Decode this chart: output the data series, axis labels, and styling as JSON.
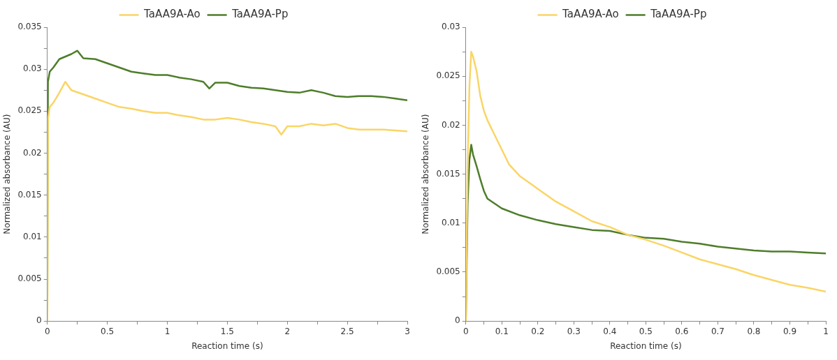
{
  "chart_data": [
    {
      "type": "line",
      "xlabel": "Reaction time (s)",
      "ylabel": "Normalized absorbance (AU)",
      "legend": "top",
      "grid": false,
      "marker": "none",
      "line_style": "solid",
      "xlim": [
        0,
        3
      ],
      "xticks": [
        0,
        {
          "value": 0.25,
          "label": null
        },
        0.5,
        {
          "value": 0.75,
          "label": null
        },
        1,
        {
          "value": 1.25,
          "label": null
        },
        1.5,
        {
          "value": 1.75,
          "label": null
        },
        2,
        {
          "value": 2.25,
          "label": null
        },
        2.5,
        {
          "value": 2.75,
          "label": null
        },
        3
      ],
      "ylim": [
        0,
        0.035
      ],
      "yticks": [
        0,
        {
          "value": 0.0025,
          "label": null
        },
        0.005,
        {
          "value": 0.0075,
          "label": null
        },
        0.01,
        {
          "value": 0.0125,
          "label": null
        },
        0.015,
        {
          "value": 0.0175,
          "label": null
        },
        0.02,
        {
          "value": 0.0225,
          "label": null
        },
        0.025,
        {
          "value": 0.0275,
          "label": null
        },
        0.03,
        {
          "value": 0.0325,
          "label": null
        },
        0.035
      ],
      "series": [
        {
          "name": "TaAA9A-Ao",
          "color": "#fad565",
          "x": [
            0,
            0.005,
            0.02,
            0.05,
            0.1,
            0.15,
            0.2,
            0.3,
            0.4,
            0.5,
            0.6,
            0.7,
            0.8,
            0.9,
            1.0,
            1.1,
            1.2,
            1.3,
            1.4,
            1.5,
            1.6,
            1.7,
            1.8,
            1.9,
            1.95,
            2.0,
            2.1,
            2.2,
            2.3,
            2.4,
            2.5,
            2.6,
            2.7,
            2.8,
            2.9,
            3.0
          ],
          "values": [
            0,
            0.024,
            0.0255,
            0.026,
            0.0272,
            0.0285,
            0.0275,
            0.027,
            0.0265,
            0.026,
            0.0255,
            0.0253,
            0.025,
            0.0248,
            0.0248,
            0.0245,
            0.0243,
            0.024,
            0.024,
            0.0242,
            0.024,
            0.0237,
            0.0235,
            0.0232,
            0.0222,
            0.0232,
            0.0232,
            0.0235,
            0.0233,
            0.0235,
            0.023,
            0.0228,
            0.0228,
            0.0228,
            0.0227,
            0.0226
          ]
        },
        {
          "name": "TaAA9A-Pp",
          "color": "#4e7d2a",
          "x": [
            0,
            0.005,
            0.02,
            0.05,
            0.1,
            0.2,
            0.25,
            0.3,
            0.4,
            0.5,
            0.6,
            0.7,
            0.8,
            0.9,
            1.0,
            1.1,
            1.2,
            1.3,
            1.35,
            1.4,
            1.5,
            1.6,
            1.7,
            1.8,
            1.9,
            2.0,
            2.1,
            2.2,
            2.3,
            2.4,
            2.5,
            2.6,
            2.7,
            2.8,
            2.9,
            3.0
          ],
          "values": [
            0,
            0.0285,
            0.0297,
            0.0302,
            0.0312,
            0.0318,
            0.0322,
            0.0313,
            0.0312,
            0.0307,
            0.0302,
            0.0297,
            0.0295,
            0.0293,
            0.0293,
            0.029,
            0.0288,
            0.0285,
            0.0277,
            0.0284,
            0.0284,
            0.028,
            0.0278,
            0.0277,
            0.0275,
            0.0273,
            0.0272,
            0.0275,
            0.0272,
            0.0268,
            0.0267,
            0.0268,
            0.0268,
            0.0267,
            0.0265,
            0.0263
          ]
        }
      ]
    },
    {
      "type": "line",
      "xlabel": "Reaction time (s)",
      "ylabel": "Normalized absorbance (AU)",
      "legend": "top",
      "grid": false,
      "marker": "none",
      "line_style": "solid",
      "xlim": [
        0,
        1
      ],
      "xticks": [
        0,
        {
          "value": 0.05,
          "label": null
        },
        0.1,
        {
          "value": 0.15,
          "label": null
        },
        0.2,
        {
          "value": 0.25,
          "label": null
        },
        0.3,
        {
          "value": 0.35,
          "label": null
        },
        0.4,
        {
          "value": 0.45,
          "label": null
        },
        0.5,
        {
          "value": 0.55,
          "label": null
        },
        0.6,
        {
          "value": 0.65,
          "label": null
        },
        0.7,
        {
          "value": 0.75,
          "label": null
        },
        0.8,
        {
          "value": 0.85,
          "label": null
        },
        0.9,
        {
          "value": 0.95,
          "label": null
        },
        1
      ],
      "ylim": [
        0,
        0.03
      ],
      "yticks": [
        0,
        {
          "value": 0.0025,
          "label": null
        },
        0.005,
        {
          "value": 0.0075,
          "label": null
        },
        0.01,
        {
          "value": 0.0125,
          "label": null
        },
        0.015,
        {
          "value": 0.0175,
          "label": null
        },
        0.02,
        {
          "value": 0.0225,
          "label": null
        },
        0.025,
        {
          "value": 0.0275,
          "label": null
        },
        0.03
      ],
      "series": [
        {
          "name": "TaAA9A-Ao",
          "color": "#fad565",
          "x": [
            0,
            0.005,
            0.01,
            0.015,
            0.02,
            0.03,
            0.04,
            0.05,
            0.06,
            0.08,
            0.1,
            0.12,
            0.15,
            0.2,
            0.25,
            0.3,
            0.35,
            0.4,
            0.45,
            0.5,
            0.55,
            0.6,
            0.65,
            0.7,
            0.75,
            0.8,
            0.85,
            0.9,
            0.95,
            1.0
          ],
          "values": [
            0,
            0.016,
            0.024,
            0.0275,
            0.027,
            0.0255,
            0.023,
            0.0215,
            0.0205,
            0.019,
            0.0175,
            0.016,
            0.0148,
            0.0135,
            0.0122,
            0.0112,
            0.0102,
            0.0096,
            0.0088,
            0.0083,
            0.0077,
            0.007,
            0.0063,
            0.0058,
            0.0053,
            0.0047,
            0.0042,
            0.0037,
            0.0034,
            0.003
          ]
        },
        {
          "name": "TaAA9A-Pp",
          "color": "#4e7d2a",
          "x": [
            0,
            0.005,
            0.01,
            0.015,
            0.02,
            0.03,
            0.04,
            0.05,
            0.06,
            0.08,
            0.1,
            0.15,
            0.2,
            0.25,
            0.3,
            0.35,
            0.4,
            0.45,
            0.5,
            0.55,
            0.6,
            0.65,
            0.7,
            0.75,
            0.8,
            0.85,
            0.9,
            0.95,
            1.0
          ],
          "values": [
            0,
            0.012,
            0.0165,
            0.018,
            0.017,
            0.0158,
            0.0145,
            0.0133,
            0.0125,
            0.012,
            0.0115,
            0.0108,
            0.0103,
            0.0099,
            0.0096,
            0.0093,
            0.0092,
            0.0088,
            0.0085,
            0.0084,
            0.0081,
            0.0079,
            0.0076,
            0.0074,
            0.0072,
            0.0071,
            0.0071,
            0.007,
            0.0069
          ]
        }
      ]
    }
  ]
}
